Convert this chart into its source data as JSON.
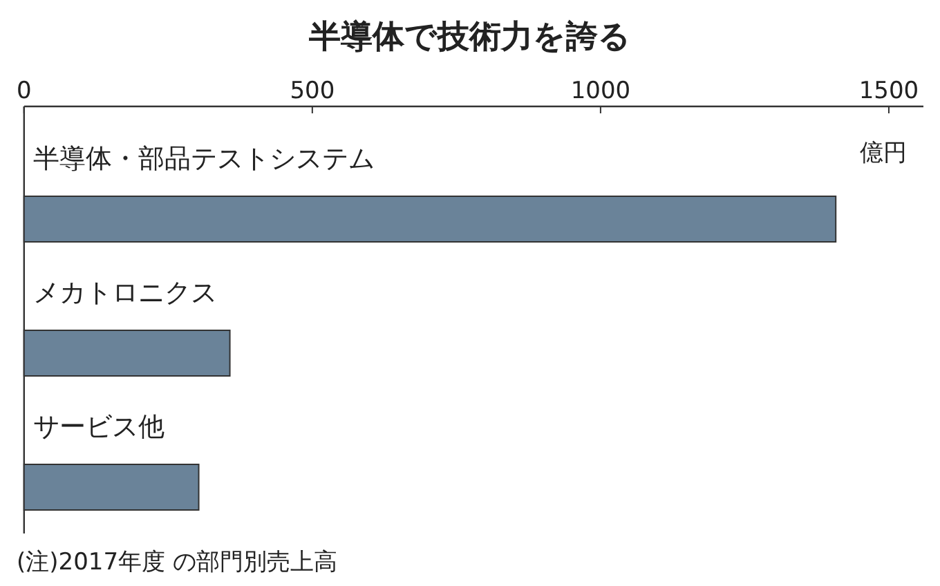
{
  "chart_data": {
    "type": "bar",
    "orientation": "horizontal",
    "title": "半導体で技術力を誇る",
    "categories": [
      "半導体・部品テストシステム",
      "メカトロニクス",
      "サービス他"
    ],
    "values": [
      1408,
      357,
      303
    ],
    "color": "#6a8399",
    "xlim": [
      0,
      1560
    ],
    "xticks": [
      0,
      500,
      1000,
      1500
    ],
    "xlabel": "億円",
    "grid": false,
    "annotations": [
      "(注)2017年度 の部門別売上高"
    ]
  }
}
